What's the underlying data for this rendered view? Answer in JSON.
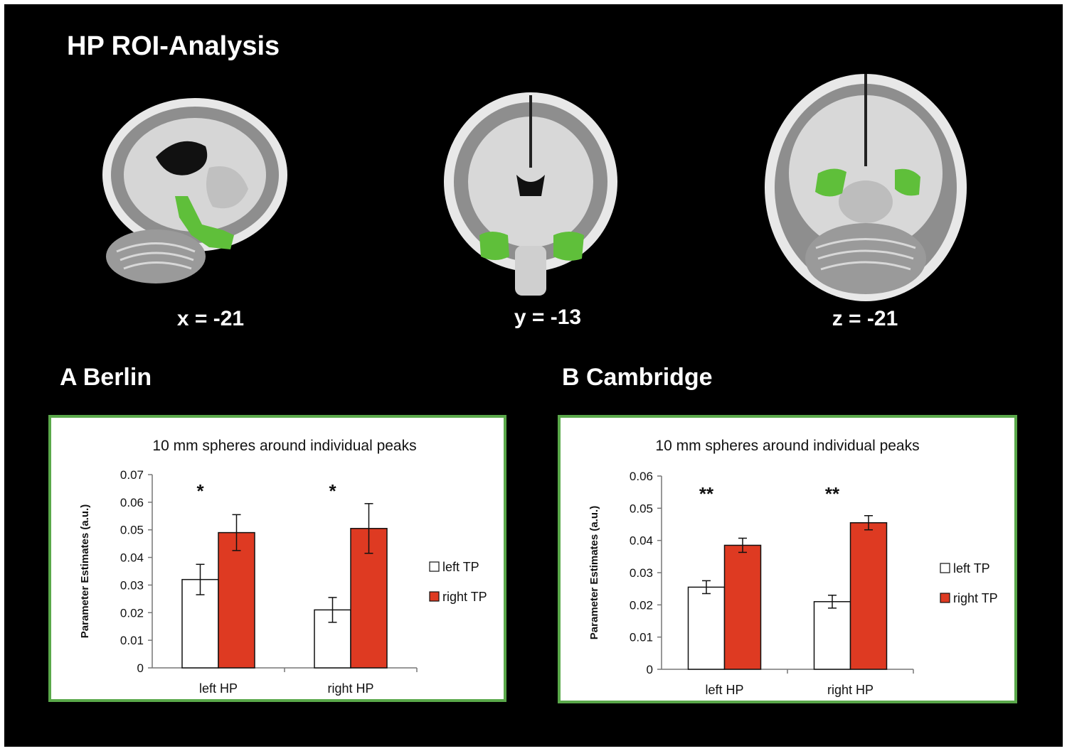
{
  "title": "HP ROI-Analysis",
  "slices": [
    {
      "label": "x = -21",
      "view": "sagittal"
    },
    {
      "label": "y = -13",
      "view": "coronal"
    },
    {
      "label": "z = -21",
      "view": "axial"
    }
  ],
  "colors": {
    "background": "#000000",
    "roi": "#5fbf3a",
    "panel_border": "#5aa84a",
    "right_tp": "#de3a22",
    "left_tp": "#ffffff"
  },
  "panels": [
    {
      "label": "A Berlin"
    },
    {
      "label": "B Cambridge"
    }
  ],
  "chart_data": [
    {
      "type": "bar",
      "title": "10 mm spheres around individual peaks",
      "ylabel": "Parameter Estimates (a.u.)",
      "xlabel": "",
      "categories": [
        "left HP",
        "right HP"
      ],
      "ylim": [
        0,
        0.07
      ],
      "yticks": [
        "0",
        "0.01",
        "0.02",
        "0.03",
        "0.04",
        "0.05",
        "0.06",
        "0.07"
      ],
      "grid": false,
      "legend": "right",
      "series": [
        {
          "name": "left TP",
          "color": "#ffffff",
          "values": [
            0.032,
            0.021
          ],
          "errors": [
            0.0055,
            0.0045
          ]
        },
        {
          "name": "right TP",
          "color": "#de3a22",
          "values": [
            0.049,
            0.0505
          ],
          "errors": [
            0.0065,
            0.009
          ]
        }
      ],
      "annotations": [
        "*",
        "*"
      ]
    },
    {
      "type": "bar",
      "title": "10 mm spheres around individual peaks",
      "ylabel": "Parameter Estimates (a.u.)",
      "xlabel": "",
      "categories": [
        "left HP",
        "right HP"
      ],
      "ylim": [
        0,
        0.06
      ],
      "yticks": [
        "0",
        "0.01",
        "0.02",
        "0.03",
        "0.04",
        "0.05",
        "0.06"
      ],
      "grid": false,
      "legend": "right",
      "series": [
        {
          "name": "left TP",
          "color": "#ffffff",
          "values": [
            0.0255,
            0.021
          ],
          "errors": [
            0.002,
            0.002
          ]
        },
        {
          "name": "right TP",
          "color": "#de3a22",
          "values": [
            0.0385,
            0.0455
          ],
          "errors": [
            0.0022,
            0.0022
          ]
        }
      ],
      "annotations": [
        "**",
        "**"
      ]
    }
  ]
}
